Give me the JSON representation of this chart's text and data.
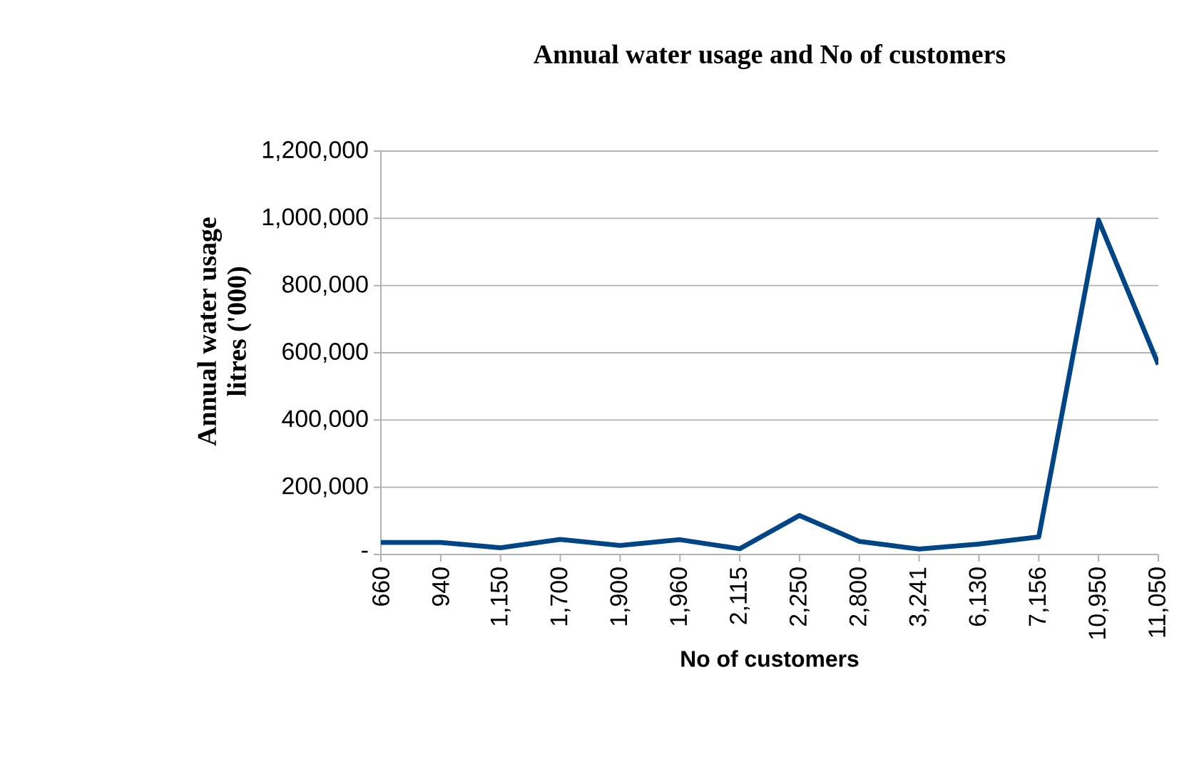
{
  "chart_data": {
    "type": "line",
    "title": "Annual water usage and No of customers",
    "xlabel": "No of customers",
    "ylabel": "Annual water usage litres ('000)",
    "categories": [
      "660",
      "940",
      "1,150",
      "1,700",
      "1,900",
      "1,960",
      "2,115",
      "2,250",
      "2,800",
      "3,241",
      "6,130",
      "7,156",
      "10,950",
      "11,050"
    ],
    "series": [
      {
        "color": "#004586",
        "values": [
          36000,
          36000,
          20000,
          45000,
          27000,
          44000,
          17000,
          116000,
          39000,
          16000,
          31000,
          52000,
          995000,
          565000
        ]
      }
    ],
    "ylim": [
      0,
      1200000
    ],
    "yticks": [
      {
        "value": 0,
        "label": "-"
      },
      {
        "value": 200000,
        "label": "200,000"
      },
      {
        "value": 400000,
        "label": "400,000"
      },
      {
        "value": 600000,
        "label": "600,000"
      },
      {
        "value": 800000,
        "label": "800,000"
      },
      {
        "value": 1000000,
        "label": "1,000,000"
      },
      {
        "value": 1200000,
        "label": "1,200,000"
      }
    ],
    "grid": "y",
    "marker": "none",
    "line_style": "solid"
  }
}
